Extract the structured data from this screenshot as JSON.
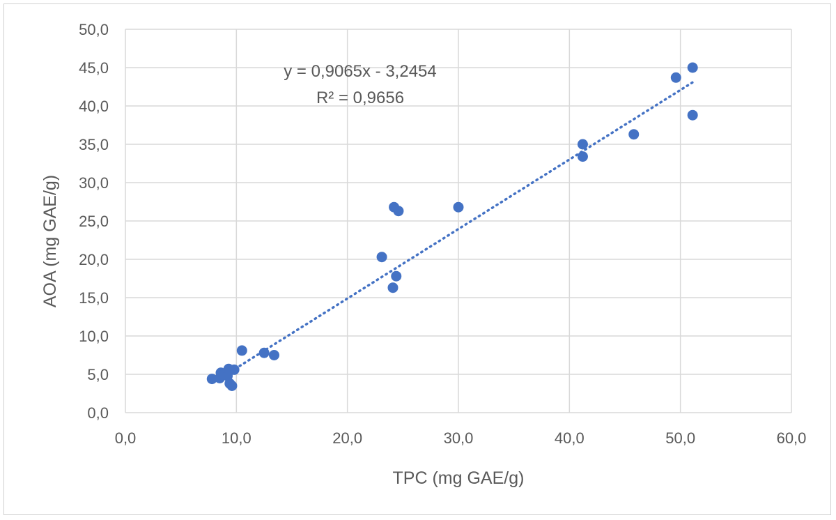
{
  "chart_data": {
    "type": "scatter",
    "title": "",
    "xlabel": "TPC (mg GAE/g)",
    "ylabel": "AOA (mg GAE/g)",
    "xlim": [
      0,
      60
    ],
    "ylim": [
      0,
      50
    ],
    "x_ticks": [
      0,
      10,
      20,
      30,
      40,
      50,
      60
    ],
    "y_ticks": [
      0,
      5,
      10,
      15,
      20,
      25,
      30,
      35,
      40,
      45,
      50
    ],
    "x_tick_labels": [
      "0,0",
      "10,0",
      "20,0",
      "30,0",
      "40,0",
      "50,0",
      "60,0"
    ],
    "y_tick_labels": [
      "0,0",
      "5,0",
      "10,0",
      "15,0",
      "20,0",
      "25,0",
      "30,0",
      "35,0",
      "40,0",
      "45,0",
      "50,0"
    ],
    "grid": true,
    "legend": "none",
    "series": [
      {
        "color": "#4472C4",
        "points": [
          [
            7.8,
            4.4
          ],
          [
            8.5,
            4.5
          ],
          [
            8.6,
            5.2
          ],
          [
            8.9,
            5.0
          ],
          [
            9.2,
            4.8
          ],
          [
            9.3,
            5.7
          ],
          [
            9.4,
            3.8
          ],
          [
            9.6,
            3.5
          ],
          [
            9.8,
            5.6
          ],
          [
            10.5,
            8.1
          ],
          [
            12.5,
            7.8
          ],
          [
            13.4,
            7.5
          ],
          [
            23.1,
            20.3
          ],
          [
            24.1,
            16.3
          ],
          [
            24.2,
            26.8
          ],
          [
            24.4,
            17.8
          ],
          [
            24.6,
            26.3
          ],
          [
            30.0,
            26.8
          ],
          [
            41.2,
            35.0
          ],
          [
            41.2,
            33.4
          ],
          [
            45.8,
            36.3
          ],
          [
            49.6,
            43.7
          ],
          [
            51.1,
            45.0
          ],
          [
            51.1,
            38.8
          ]
        ]
      }
    ],
    "trendline": {
      "type": "linear",
      "slope": 0.9065,
      "intercept": -3.2454,
      "x_range": [
        9.5,
        51.3
      ],
      "color": "#4472C4",
      "style": "dotted",
      "equation_label": "y = 0,9065x - 3,2454",
      "r2_label": "R² = 0,9656"
    }
  }
}
